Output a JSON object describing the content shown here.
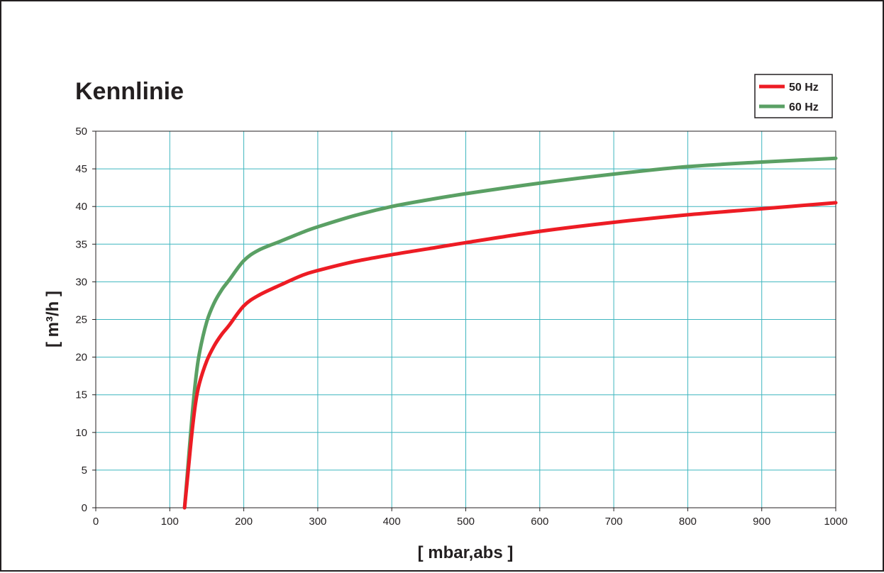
{
  "chart_data": {
    "type": "line",
    "title": "Kennlinie",
    "xlabel": "[ mbar,abs ]",
    "ylabel": "[ m³/h ]",
    "xlim": [
      0,
      1000
    ],
    "ylim": [
      0,
      50
    ],
    "x_ticks": [
      0,
      100,
      200,
      300,
      400,
      500,
      600,
      700,
      800,
      900,
      1000
    ],
    "y_ticks": [
      0,
      5,
      10,
      15,
      20,
      25,
      30,
      35,
      40,
      45,
      50
    ],
    "grid": true,
    "legend_position": "top-right",
    "series": [
      {
        "name": "50 Hz",
        "color": "#ed1c24",
        "x": [
          120,
          125,
          130,
          135,
          140,
          150,
          160,
          170,
          180,
          200,
          220,
          250,
          280,
          300,
          350,
          400,
          450,
          500,
          600,
          700,
          800,
          900,
          1000
        ],
        "y": [
          0,
          5,
          10,
          14,
          16.5,
          19.5,
          21.5,
          23,
          24.2,
          26.8,
          28.2,
          29.6,
          30.9,
          31.5,
          32.7,
          33.6,
          34.4,
          35.2,
          36.7,
          37.9,
          38.9,
          39.7,
          40.5
        ]
      },
      {
        "name": "60 Hz",
        "color": "#5aa064",
        "x": [
          120,
          125,
          130,
          135,
          140,
          150,
          160,
          170,
          180,
          200,
          220,
          250,
          280,
          300,
          350,
          400,
          450,
          500,
          600,
          700,
          800,
          900,
          1000
        ],
        "y": [
          0,
          6,
          12,
          17,
          20.5,
          24.7,
          27.2,
          28.9,
          30.2,
          32.8,
          34.2,
          35.4,
          36.6,
          37.3,
          38.8,
          40,
          40.9,
          41.7,
          43.1,
          44.3,
          45.3,
          45.9,
          46.4
        ]
      }
    ]
  }
}
